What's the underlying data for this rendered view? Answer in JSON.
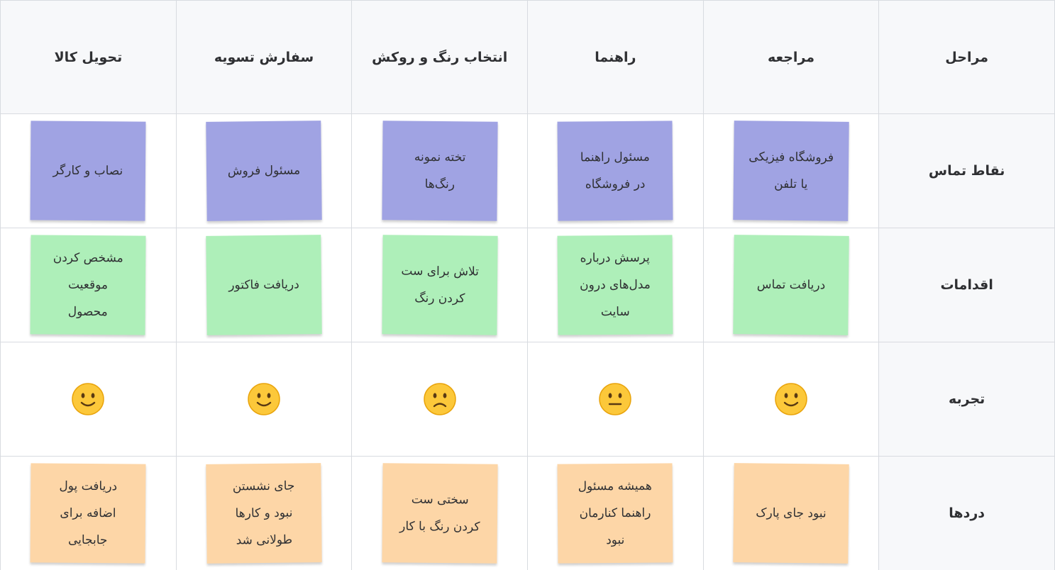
{
  "table": {
    "header": [
      "مراحل",
      "مراجعه",
      "راهنما",
      "انتخاب رنگ و روکش",
      "سفارش تسویه",
      "تحویل کالا"
    ],
    "rows": [
      {
        "label": "نقاط تماس",
        "note_color": "#a0a3e3",
        "notes": [
          [
            "فروشگاه فیزیکی",
            "یا تلفن"
          ],
          [
            "مسئول راهنما",
            "در فروشگاه"
          ],
          [
            "تخته نمونه",
            "رنگ‌ها"
          ],
          [
            "مسئول فروش"
          ],
          [
            "نصاب و کارگر"
          ]
        ]
      },
      {
        "label": "اقدامات",
        "note_color": "#aeefb9",
        "notes": [
          [
            "دریافت تماس"
          ],
          [
            "پرسش درباره",
            "مدل‌های درون",
            "سایت"
          ],
          [
            "تلاش برای ست",
            "کردن رنگ"
          ],
          [
            "دریافت فاکتور"
          ],
          [
            "مشخص کردن",
            "موقعیت",
            "محصول"
          ]
        ]
      },
      {
        "label": "تجربه"
      },
      {
        "label": "دردها",
        "note_color": "#fdd6a7",
        "notes": [
          [
            "نبود جای پارک"
          ],
          [
            "همیشه مسئول",
            "راهنما کنارمان",
            "نبود"
          ],
          [
            "سختی ست",
            "کردن رنگ با کار"
          ],
          [
            "جای نشستن",
            "نبود و کارها",
            "طولانی شد"
          ],
          [
            "دریافت پول",
            "اضافه برای",
            "جابجایی"
          ]
        ]
      }
    ]
  }
}
